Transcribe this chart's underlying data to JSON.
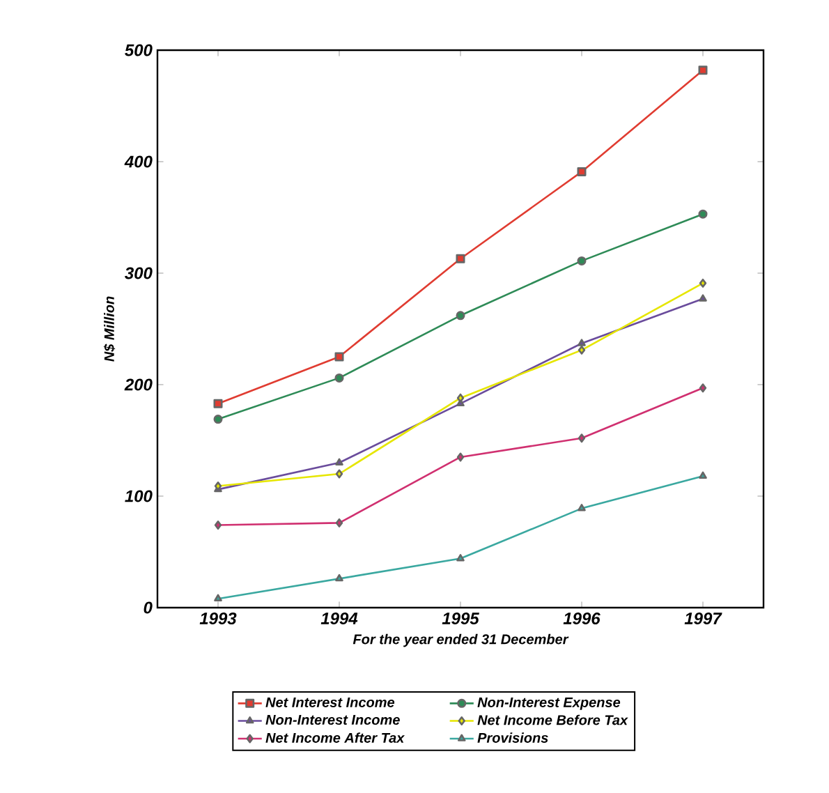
{
  "chart_data": {
    "type": "line",
    "xlabel": "For the year ended 31 December",
    "ylabel": "N$ Million",
    "categories": [
      "1993",
      "1994",
      "1995",
      "1996",
      "1997"
    ],
    "ylim": [
      0,
      500
    ],
    "yticks": [
      0,
      100,
      200,
      300,
      400,
      500
    ],
    "grid": false,
    "legend": "bottom",
    "series": [
      {
        "name": "Net Interest Income",
        "color": "#e03c31",
        "marker": "square",
        "values": [
          183,
          225,
          313,
          391,
          482
        ]
      },
      {
        "name": "Non-Interest Expense",
        "color": "#2e8b57",
        "marker": "circle",
        "values": [
          169,
          206,
          262,
          311,
          353
        ]
      },
      {
        "name": "Non-Interest Income",
        "color": "#6a4c9c",
        "marker": "triangle",
        "values": [
          106,
          130,
          183,
          237,
          277
        ]
      },
      {
        "name": "Net Income Before Tax",
        "color": "#e6e600",
        "marker": "diamond",
        "values": [
          109,
          120,
          188,
          231,
          291
        ]
      },
      {
        "name": "Net Income After Tax",
        "color": "#d03070",
        "marker": "diamond",
        "values": [
          74,
          76,
          135,
          152,
          197
        ]
      },
      {
        "name": "Provisions",
        "color": "#3aa8a0",
        "marker": "triangle",
        "values": [
          8,
          26,
          44,
          89,
          118
        ]
      }
    ]
  }
}
